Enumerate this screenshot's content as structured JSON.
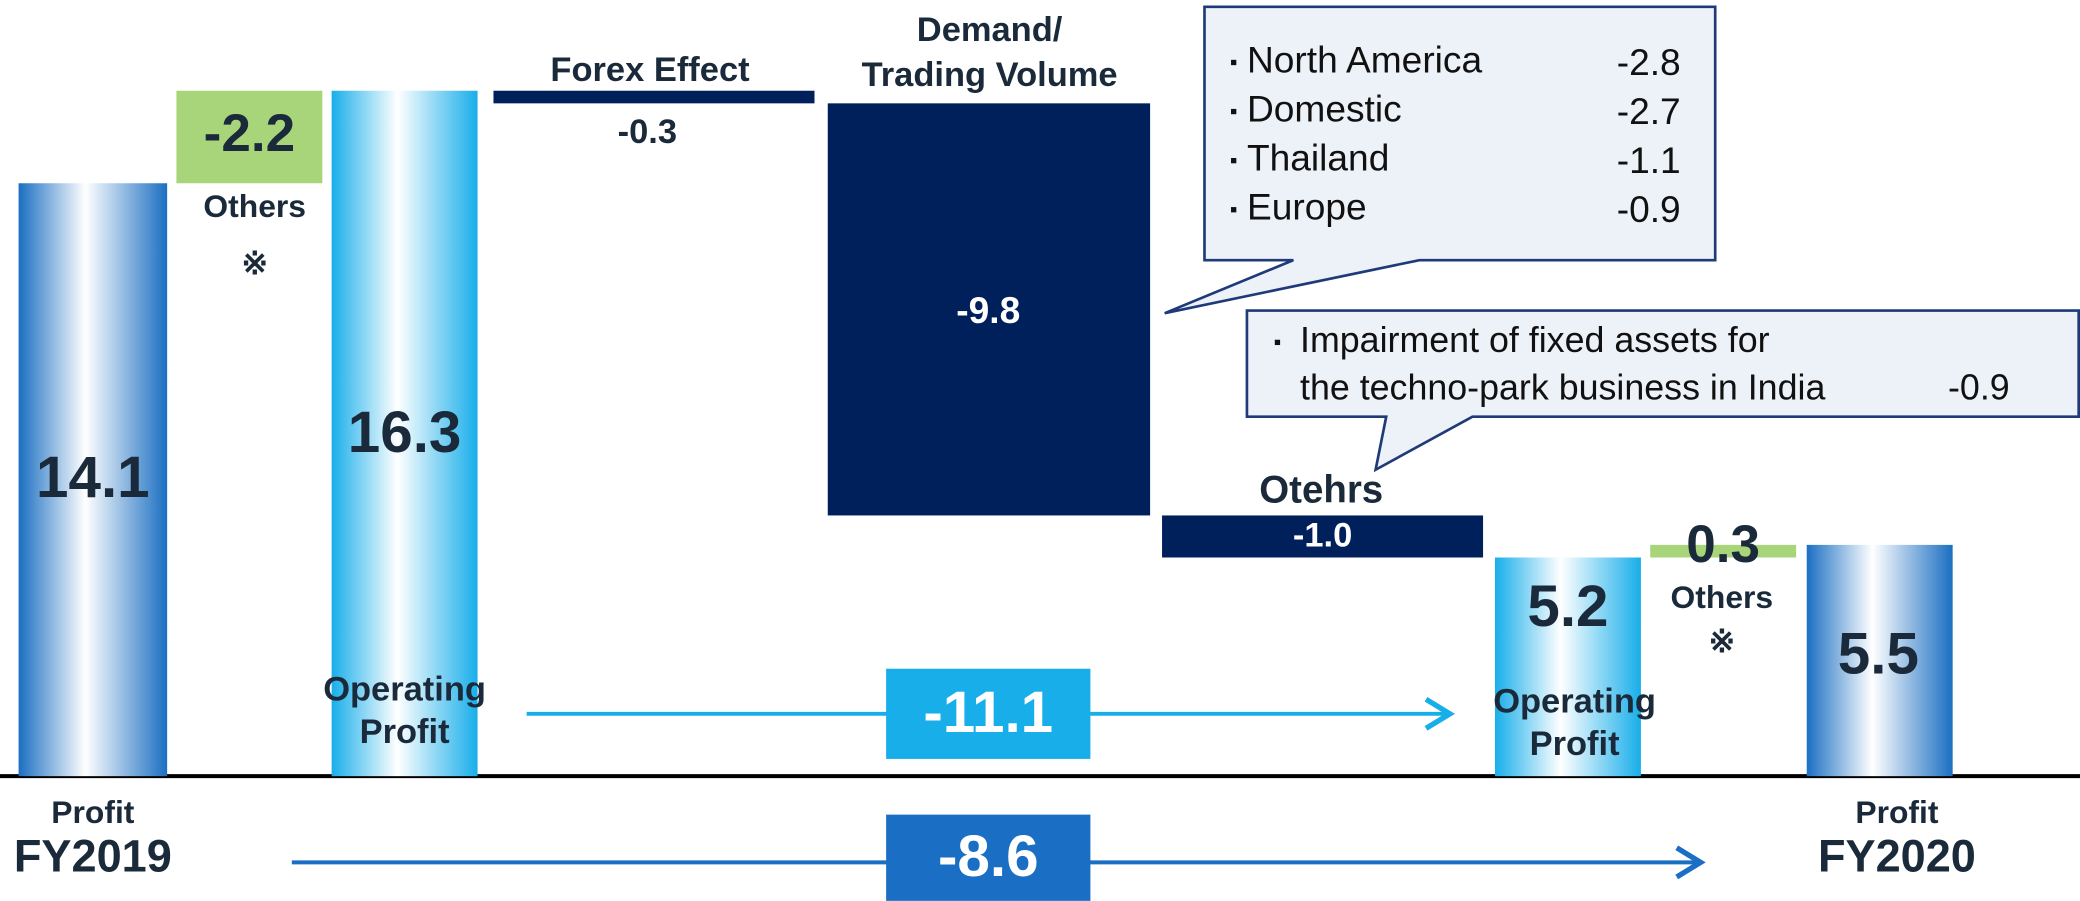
{
  "chart_data": {
    "type": "waterfall",
    "ylim": [
      0,
      18
    ],
    "bars": [
      {
        "label": [
          "Profit",
          "FY2019"
        ],
        "value": 14.1,
        "kind": "total",
        "color": "#1b6fc2"
      },
      {
        "label": [
          "Others",
          "※"
        ],
        "value": -2.2,
        "kind": "adjust",
        "color": "#a8d47a"
      },
      {
        "label": [
          "Operating",
          "Profit"
        ],
        "value": 16.3,
        "kind": "total",
        "color": "#18aeea"
      },
      {
        "label": [
          "Forex Effect"
        ],
        "value": -0.3,
        "kind": "delta",
        "color": "#00205b"
      },
      {
        "label": [
          "Demand/",
          "Trading Volume"
        ],
        "value": -9.8,
        "kind": "delta",
        "color": "#00205b"
      },
      {
        "label": [
          "Otehrs"
        ],
        "value": -1.0,
        "value_label": "-1.0",
        "kind": "delta",
        "color": "#00205b"
      },
      {
        "label": [
          "Operating",
          "Profit"
        ],
        "value": 5.2,
        "kind": "total",
        "color": "#18aeea"
      },
      {
        "label": [
          "Others",
          "※"
        ],
        "value": 0.3,
        "kind": "adjust",
        "color": "#a8d47a"
      },
      {
        "label": [
          "Profit",
          "FY2020"
        ],
        "value": 5.5,
        "kind": "total",
        "color": "#1b6fc2"
      }
    ],
    "changes": [
      {
        "value": -11.1,
        "color": "#18aeea"
      },
      {
        "value": -8.6,
        "color": "#1a6fc4"
      }
    ],
    "callouts": [
      {
        "items": [
          {
            "name": "North America",
            "value": -2.8
          },
          {
            "name": "Domestic",
            "value": -2.7
          },
          {
            "name": "Thailand",
            "value": -1.1
          },
          {
            "name": "Europe",
            "value": -0.9
          }
        ]
      },
      {
        "lines": [
          "Impairment of fixed assets for",
          "the techno-park business in India"
        ],
        "value": -0.9
      }
    ]
  }
}
